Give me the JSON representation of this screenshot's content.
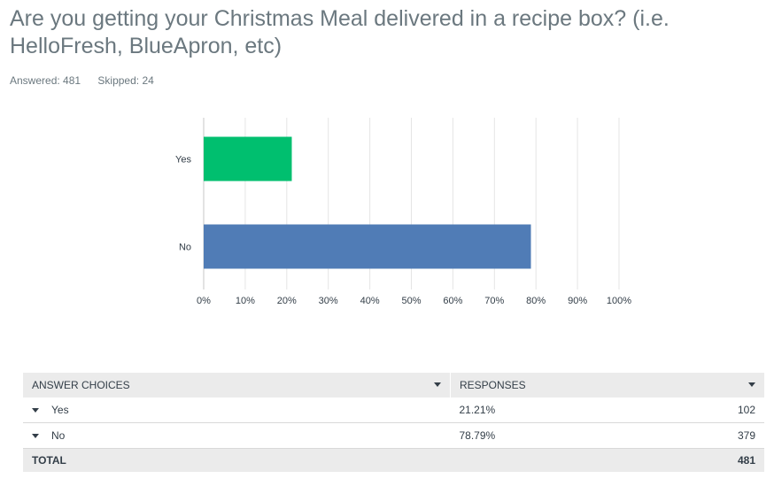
{
  "question": {
    "title": "Are you getting your Christmas Meal delivered in a recipe box? (i.e. HelloFresh, BlueApron, etc)",
    "answered": "Answered: 481",
    "skipped": "Skipped: 24"
  },
  "colors": {
    "yes": "#00bf6f",
    "no": "#507cb6",
    "grid": "#e5e5e5",
    "axis": "#c7c7c7"
  },
  "chart_data": {
    "type": "bar",
    "orientation": "horizontal",
    "categories": [
      "Yes",
      "No"
    ],
    "values": [
      21.21,
      78.79
    ],
    "xlim": [
      0,
      100
    ],
    "xticks": [
      "0%",
      "10%",
      "20%",
      "30%",
      "40%",
      "50%",
      "60%",
      "70%",
      "80%",
      "90%",
      "100%"
    ],
    "grid": true
  },
  "table": {
    "headers": [
      "ANSWER CHOICES",
      "RESPONSES"
    ],
    "rows": [
      {
        "choice": "Yes",
        "percent": "21.21%",
        "count": "102"
      },
      {
        "choice": "No",
        "percent": "78.79%",
        "count": "379"
      }
    ],
    "total_label": "TOTAL",
    "total_value": "481"
  }
}
